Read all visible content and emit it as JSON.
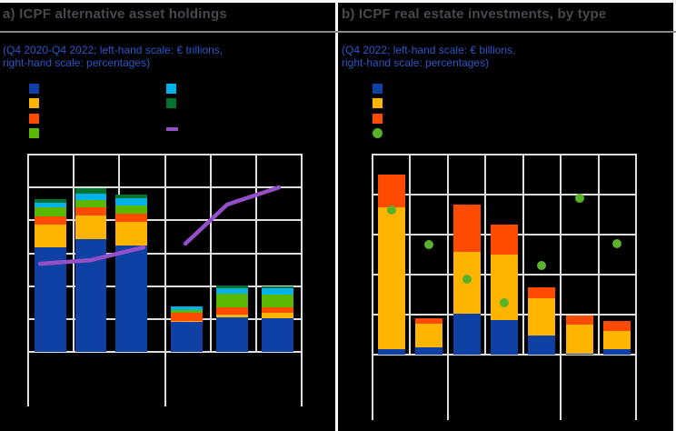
{
  "colors": {
    "background": "#000000",
    "blue": "#0e41a3",
    "yellow": "#ffb400",
    "orange_red": "#ff4b00",
    "green": "#5ab800",
    "light_blue": "#00b1ea",
    "dark_green": "#00742f",
    "purple": "#944fc9",
    "dot_green": "#58b22a",
    "gridline": "#dedede",
    "frame": "#f8f8f8",
    "title_text": "#46494d",
    "subtitle_text": "#2c55c8",
    "title_rule": "#8a8a8a"
  },
  "panel_a": {
    "title": "a) ICPF alternative asset holdings",
    "subtitle_line1": "(Q4 2020-Q4 2022; left-hand scale: € trillions,",
    "subtitle_line2": "right-hand scale: percentages)"
  },
  "panel_b": {
    "title": "b) ICPF real estate investments, by type",
    "subtitle_line1": "(Q4 2022; left-hand scale: € billions,",
    "subtitle_line2": "right-hand scale: percentages)"
  },
  "chart_data": [
    {
      "id": "a",
      "type": "bar",
      "stacked": true,
      "title": "a) ICPF alternative asset holdings",
      "subtitle": "(Q4 2020-Q4 2022; left-hand scale: € trillions, right-hand scale: percentages)",
      "axis_note": "No axis tick labels, category labels or legend text are legible in the image (dark text on black); values are estimated in vertical gridline divisions, 0 = bottom axis, left axis spans 6 divisions.",
      "ylim": [
        0,
        6
      ],
      "grid": true,
      "bar_groups": [
        3,
        3
      ],
      "series": [
        {
          "name": "blue",
          "color": "blue",
          "values": [
            3.17,
            3.42,
            3.23,
            0.91,
            1.05,
            1.02
          ]
        },
        {
          "name": "yellow",
          "color": "yellow",
          "values": [
            0.71,
            0.72,
            0.72,
            0.04,
            0.08,
            0.17
          ]
        },
        {
          "name": "orange-red",
          "color": "orange_red",
          "values": [
            0.25,
            0.27,
            0.25,
            0.23,
            0.22,
            0.16
          ]
        },
        {
          "name": "green",
          "color": "green",
          "values": [
            0.26,
            0.21,
            0.25,
            0.1,
            0.43,
            0.4
          ]
        },
        {
          "name": "light-blue",
          "color": "light_blue",
          "values": [
            0.15,
            0.2,
            0.21,
            0.1,
            0.16,
            0.18
          ]
        },
        {
          "name": "dark-green",
          "color": "dark_green",
          "values": [
            0.1,
            0.16,
            0.12,
            0,
            0.07,
            0.07
          ]
        }
      ],
      "line": {
        "name": "purple-line",
        "color": "purple",
        "scale": "right-hand (percentages)",
        "values": [
          2.68,
          2.79,
          3.18,
          3.29,
          4.48,
          5.0
        ],
        "segments": [
          [
            0,
            2
          ],
          [
            3,
            5
          ]
        ]
      },
      "legend": [
        {
          "shape": "square",
          "color": "blue",
          "col": 0,
          "row": 0
        },
        {
          "shape": "square",
          "color": "yellow",
          "col": 0,
          "row": 1
        },
        {
          "shape": "square",
          "color": "orange_red",
          "col": 0,
          "row": 2
        },
        {
          "shape": "square",
          "color": "green",
          "col": 0,
          "row": 3
        },
        {
          "shape": "square",
          "color": "light_blue",
          "col": 1,
          "row": 0
        },
        {
          "shape": "square",
          "color": "dark_green",
          "col": 1,
          "row": 1
        },
        {
          "shape": "line",
          "color": "purple",
          "col": 1,
          "row": 2.7
        }
      ],
      "legend_note": "legend swatches only, text labels not legible"
    },
    {
      "id": "b",
      "type": "bar",
      "stacked": true,
      "title": "b) ICPF real estate investments, by type",
      "subtitle": "(Q4 2022; left-hand scale: € billions, right-hand scale: percentages)",
      "axis_note": "No axis tick labels, category labels or legend text are legible in the image (dark text on black); values are estimated in vertical gridline divisions, 0 = bottom axis, left axis spans 5 divisions.",
      "ylim": [
        0,
        5
      ],
      "grid": true,
      "bar_groups": [
        2,
        3,
        2
      ],
      "series": [
        {
          "name": "blue",
          "color": "blue",
          "values": [
            0.13,
            0.18,
            1.02,
            0.86,
            0.48,
            0.02,
            0.13
          ]
        },
        {
          "name": "yellow",
          "color": "yellow",
          "values": [
            3.56,
            0.6,
            1.55,
            1.64,
            0.94,
            0.73,
            0.45
          ]
        },
        {
          "name": "orange-red",
          "color": "orange_red",
          "values": [
            0.8,
            0.13,
            1.19,
            0.76,
            0.27,
            0.23,
            0.25
          ]
        }
      ],
      "dots": {
        "name": "green-dot",
        "color": "dot_green",
        "scale": "right-hand (percentages)",
        "values": [
          3.62,
          2.75,
          1.88,
          1.3,
          2.22,
          3.9,
          2.77
        ]
      },
      "legend": [
        {
          "shape": "square",
          "color": "blue",
          "col": 0,
          "row": 0
        },
        {
          "shape": "square",
          "color": "yellow",
          "col": 0,
          "row": 1
        },
        {
          "shape": "square",
          "color": "orange_red",
          "col": 0,
          "row": 2
        },
        {
          "shape": "circle",
          "color": "dot_green",
          "col": 0,
          "row": 3
        }
      ],
      "legend_note": "legend swatches only, text labels not legible"
    }
  ]
}
